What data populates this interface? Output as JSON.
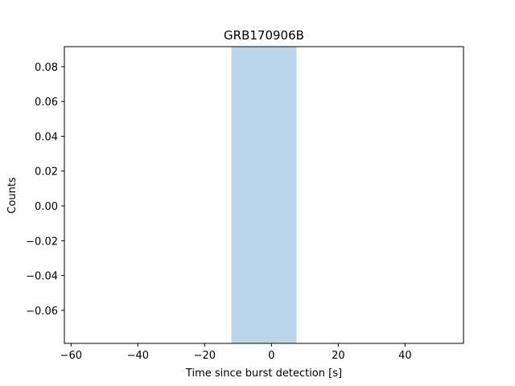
{
  "chart_data": {
    "type": "area",
    "title": "GRB170906B",
    "xlabel": "Time since burst detection [s]",
    "ylabel": "Counts",
    "xlim": [
      -62,
      57.5
    ],
    "ylim": [
      -0.079,
      0.0915
    ],
    "xticks": [
      -60,
      -40,
      -20,
      0,
      20,
      40
    ],
    "xtick_labels": [
      "−60",
      "−40",
      "−20",
      "0",
      "20",
      "40"
    ],
    "yticks": [
      -0.06,
      -0.04,
      -0.02,
      0.0,
      0.02,
      0.04,
      0.06,
      0.08
    ],
    "ytick_labels": [
      "−0.06",
      "−0.04",
      "−0.02",
      "0.00",
      "0.02",
      "0.04",
      "0.06",
      "0.08"
    ],
    "shaded_span": {
      "x": [
        -12,
        7.5
      ],
      "color": "#bad6ea"
    },
    "series": [],
    "grid": false
  }
}
